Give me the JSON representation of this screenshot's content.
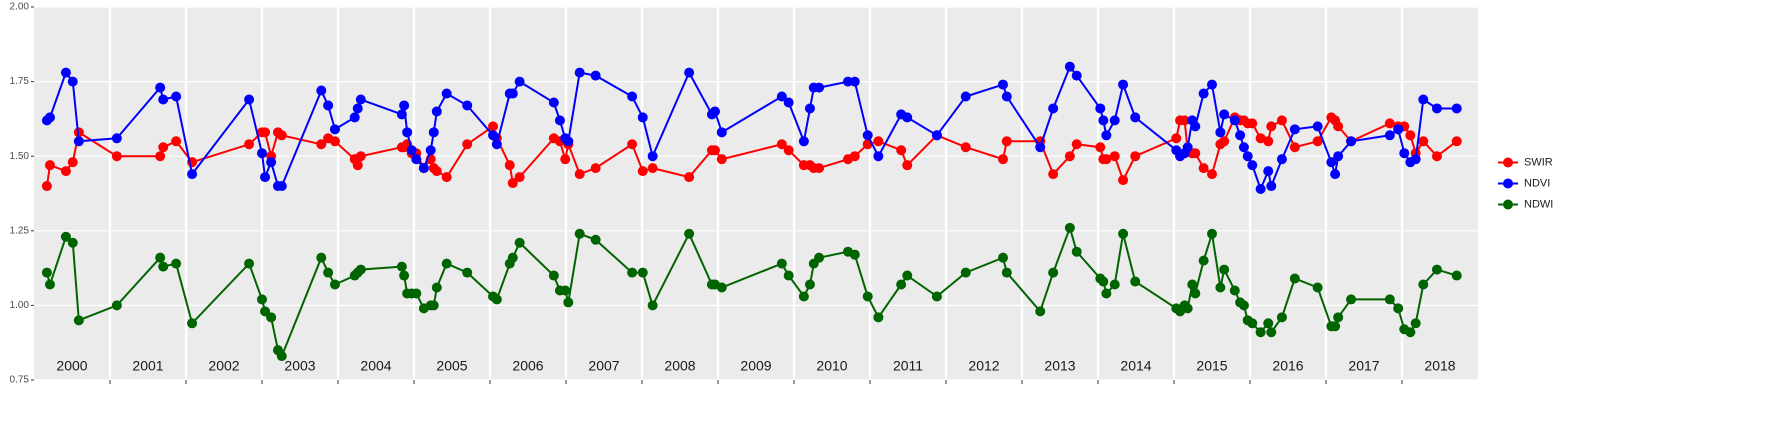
{
  "chart_data": {
    "type": "line",
    "x": [
      2000.17,
      2000.21,
      2000.42,
      2000.51,
      2000.59,
      2001.09,
      2001.66,
      2001.7,
      2001.87,
      2002.08,
      2002.83,
      2003.0,
      2003.04,
      2003.12,
      2003.21,
      2003.26,
      2003.78,
      2003.87,
      2003.96,
      2004.22,
      2004.26,
      2004.3,
      2004.84,
      2004.87,
      2004.91,
      2004.97,
      2005.03,
      2005.13,
      2005.22,
      2005.26,
      2005.3,
      2005.43,
      2005.7,
      2006.04,
      2006.09,
      2006.26,
      2006.3,
      2006.39,
      2006.84,
      2006.92,
      2006.99,
      2007.03,
      2007.18,
      2007.39,
      2007.87,
      2008.01,
      2008.14,
      2008.62,
      2008.92,
      2008.96,
      2009.05,
      2009.84,
      2009.93,
      2010.13,
      2010.21,
      2010.26,
      2010.33,
      2010.71,
      2010.8,
      2010.97,
      2011.11,
      2011.41,
      2011.49,
      2011.88,
      2012.26,
      2012.75,
      2012.8,
      2013.24,
      2013.41,
      2013.63,
      2013.72,
      2014.03,
      2014.07,
      2014.11,
      2014.22,
      2014.33,
      2014.49,
      2015.03,
      2015.08,
      2015.14,
      2015.18,
      2015.24,
      2015.28,
      2015.39,
      2015.5,
      2015.61,
      2015.66,
      2015.8,
      2015.87,
      2015.92,
      2015.97,
      2016.03,
      2016.14,
      2016.24,
      2016.28,
      2016.42,
      2016.59,
      2016.89,
      2017.07,
      2017.12,
      2017.16,
      2017.33,
      2017.84,
      2017.95,
      2018.03,
      2018.11,
      2018.18,
      2018.28,
      2018.46,
      2018.72
    ],
    "series": [
      {
        "name": "SWIR",
        "color": "#ff0000",
        "values": [
          1.4,
          1.47,
          1.45,
          1.48,
          1.58,
          1.5,
          1.5,
          1.53,
          1.55,
          1.48,
          1.54,
          1.58,
          1.58,
          1.5,
          1.58,
          1.57,
          1.54,
          1.56,
          1.55,
          1.49,
          1.47,
          1.5,
          1.53,
          1.53,
          1.54,
          1.51,
          1.51,
          1.46,
          1.49,
          1.46,
          1.45,
          1.43,
          1.54,
          1.6,
          1.56,
          1.47,
          1.41,
          1.43,
          1.56,
          1.55,
          1.49,
          1.54,
          1.44,
          1.46,
          1.54,
          1.45,
          1.46,
          1.43,
          1.52,
          1.52,
          1.49,
          1.54,
          1.52,
          1.47,
          1.47,
          1.46,
          1.46,
          1.49,
          1.5,
          1.54,
          1.55,
          1.52,
          1.47,
          1.57,
          1.53,
          1.49,
          1.55,
          1.55,
          1.44,
          1.5,
          1.54,
          1.53,
          1.49,
          1.49,
          1.5,
          1.42,
          1.5,
          1.56,
          1.62,
          1.62,
          1.52,
          1.51,
          1.51,
          1.46,
          1.44,
          1.54,
          1.55,
          1.63,
          1.62,
          1.62,
          1.61,
          1.61,
          1.56,
          1.55,
          1.6,
          1.62,
          1.53,
          1.55,
          1.63,
          1.62,
          1.6,
          1.55,
          1.61,
          1.6,
          1.6,
          1.57,
          1.51,
          1.55,
          1.5,
          1.55
        ]
      },
      {
        "name": "NDVI",
        "color": "#0000ff",
        "values": [
          1.62,
          1.63,
          1.78,
          1.75,
          1.55,
          1.56,
          1.73,
          1.69,
          1.7,
          1.44,
          1.69,
          1.51,
          1.43,
          1.48,
          1.4,
          1.4,
          1.72,
          1.67,
          1.59,
          1.63,
          1.66,
          1.69,
          1.64,
          1.67,
          1.58,
          1.52,
          1.49,
          1.46,
          1.52,
          1.58,
          1.65,
          1.71,
          1.67,
          1.57,
          1.54,
          1.71,
          1.71,
          1.75,
          1.68,
          1.62,
          1.56,
          1.55,
          1.78,
          1.77,
          1.7,
          1.63,
          1.5,
          1.78,
          1.64,
          1.65,
          1.58,
          1.7,
          1.68,
          1.55,
          1.66,
          1.73,
          1.73,
          1.75,
          1.75,
          1.57,
          1.5,
          1.64,
          1.63,
          1.57,
          1.7,
          1.74,
          1.7,
          1.53,
          1.66,
          1.8,
          1.77,
          1.66,
          1.62,
          1.57,
          1.62,
          1.74,
          1.63,
          1.52,
          1.5,
          1.51,
          1.53,
          1.62,
          1.6,
          1.71,
          1.74,
          1.58,
          1.64,
          1.62,
          1.57,
          1.53,
          1.5,
          1.47,
          1.39,
          1.45,
          1.4,
          1.49,
          1.59,
          1.6,
          1.48,
          1.44,
          1.5,
          1.55,
          1.57,
          1.59,
          1.51,
          1.48,
          1.49,
          1.69,
          1.66,
          1.66
        ]
      },
      {
        "name": "NDWI",
        "color": "#006400",
        "values": [
          1.11,
          1.07,
          1.23,
          1.21,
          0.95,
          1.0,
          1.16,
          1.13,
          1.14,
          0.94,
          1.14,
          1.02,
          0.98,
          0.96,
          0.85,
          0.83,
          1.16,
          1.11,
          1.07,
          1.1,
          1.11,
          1.12,
          1.13,
          1.1,
          1.04,
          1.04,
          1.04,
          0.99,
          1.0,
          1.0,
          1.06,
          1.14,
          1.11,
          1.03,
          1.02,
          1.14,
          1.16,
          1.21,
          1.1,
          1.05,
          1.05,
          1.01,
          1.24,
          1.22,
          1.11,
          1.11,
          1.0,
          1.24,
          1.07,
          1.07,
          1.06,
          1.14,
          1.1,
          1.03,
          1.07,
          1.14,
          1.16,
          1.18,
          1.17,
          1.03,
          0.96,
          1.07,
          1.1,
          1.03,
          1.11,
          1.16,
          1.11,
          0.98,
          1.11,
          1.26,
          1.18,
          1.09,
          1.08,
          1.04,
          1.07,
          1.24,
          1.08,
          0.99,
          0.98,
          1.0,
          0.99,
          1.07,
          1.04,
          1.15,
          1.24,
          1.06,
          1.12,
          1.05,
          1.01,
          1.0,
          0.95,
          0.94,
          0.91,
          0.94,
          0.91,
          0.96,
          1.09,
          1.06,
          0.93,
          0.93,
          0.96,
          1.02,
          1.02,
          0.99,
          0.92,
          0.91,
          0.94,
          1.07,
          1.12,
          1.1
        ]
      }
    ],
    "xlim": [
      2000,
      2019
    ],
    "xticks": [
      {
        "value": 2000.5,
        "label": "2000"
      },
      {
        "value": 2001.5,
        "label": "2001"
      },
      {
        "value": 2002.5,
        "label": "2002"
      },
      {
        "value": 2003.5,
        "label": "2003"
      },
      {
        "value": 2004.5,
        "label": "2004"
      },
      {
        "value": 2005.5,
        "label": "2005"
      },
      {
        "value": 2006.5,
        "label": "2006"
      },
      {
        "value": 2007.5,
        "label": "2007"
      },
      {
        "value": 2008.5,
        "label": "2008"
      },
      {
        "value": 2009.5,
        "label": "2009"
      },
      {
        "value": 2010.5,
        "label": "2010"
      },
      {
        "value": 2011.5,
        "label": "2011"
      },
      {
        "value": 2012.5,
        "label": "2012"
      },
      {
        "value": 2013.5,
        "label": "2013"
      },
      {
        "value": 2014.5,
        "label": "2014"
      },
      {
        "value": 2015.5,
        "label": "2015"
      },
      {
        "value": 2016.5,
        "label": "2016"
      },
      {
        "value": 2017.5,
        "label": "2017"
      },
      {
        "value": 2018.5,
        "label": "2018"
      }
    ],
    "ylim": [
      0.75,
      2.0
    ],
    "yticks": [
      {
        "value": 0.75,
        "label": "0.75"
      },
      {
        "value": 1.0,
        "label": "1.00"
      },
      {
        "value": 1.25,
        "label": "1.25"
      },
      {
        "value": 1.5,
        "label": "1.50"
      },
      {
        "value": 1.75,
        "label": "1.75"
      },
      {
        "value": 2.0,
        "label": "2.00"
      }
    ],
    "grid": true,
    "legend": "right"
  }
}
